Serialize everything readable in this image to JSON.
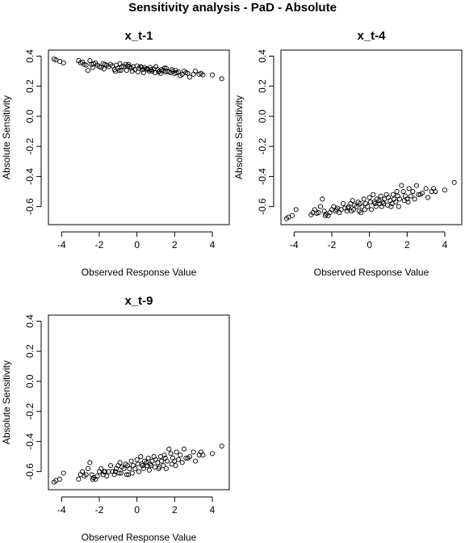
{
  "figure": {
    "title": "Sensitivity analysis - PaD - Absolute"
  },
  "chart_data": [
    {
      "type": "scatter",
      "title": "x_t-1",
      "xlabel": "Observed Response Value",
      "ylabel": "Absolute Sensitivity",
      "xlim": [
        -4.7,
        4.9
      ],
      "ylim": [
        -0.72,
        0.44
      ],
      "xticks": [
        -4,
        -2,
        0,
        2,
        4
      ],
      "yticks": [
        -0.6,
        -0.4,
        -0.2,
        0.0,
        0.2,
        0.4
      ],
      "xtick_labels": [
        "-4",
        "-2",
        "0",
        "2",
        "4"
      ],
      "ytick_labels": [
        "-0.6",
        "-0.4",
        "-0.2",
        "0.0",
        "0.2",
        "0.4"
      ],
      "marker": "open-circle",
      "trend": {
        "intercept": 0.315,
        "slope": -0.012,
        "spread": 0.045
      },
      "x": [
        -4.4,
        -4.3,
        -4.1,
        -3.9,
        -3.1,
        -3.0,
        -2.9,
        -2.8,
        -2.7,
        -2.6,
        -2.5,
        -2.4,
        -2.3,
        -2.2,
        -2.1,
        -2.0,
        -1.9,
        -1.8,
        -1.7,
        -1.6,
        -1.5,
        -1.4,
        -1.3,
        -1.2,
        -1.1,
        -1.0,
        -0.9,
        -0.85,
        -0.8,
        -0.7,
        -0.6,
        -0.55,
        -0.5,
        -0.4,
        -0.3,
        -0.25,
        -0.2,
        -0.1,
        0.0,
        0.05,
        0.1,
        0.2,
        0.3,
        0.35,
        0.4,
        0.5,
        0.6,
        0.65,
        0.7,
        0.8,
        0.9,
        0.95,
        1.0,
        1.1,
        1.2,
        1.25,
        1.3,
        1.4,
        1.5,
        1.55,
        1.6,
        1.7,
        1.8,
        1.85,
        1.9,
        2.0,
        2.1,
        2.2,
        2.3,
        2.4,
        2.5,
        2.6,
        2.8,
        3.0,
        3.1,
        3.3,
        3.5,
        4.0,
        4.5,
        -1.75,
        -1.15,
        -0.45,
        0.25,
        0.75,
        1.45,
        2.05,
        -0.95,
        0.55,
        1.15,
        -2.35,
        2.7,
        3.4
      ],
      "y": [
        0.38,
        0.375,
        0.365,
        0.355,
        0.37,
        0.355,
        0.36,
        0.345,
        0.34,
        0.305,
        0.37,
        0.345,
        0.35,
        0.355,
        0.34,
        0.33,
        0.325,
        0.35,
        0.345,
        0.34,
        0.33,
        0.345,
        0.335,
        0.31,
        0.34,
        0.32,
        0.35,
        0.305,
        0.33,
        0.33,
        0.345,
        0.305,
        0.335,
        0.33,
        0.32,
        0.3,
        0.33,
        0.31,
        0.335,
        0.295,
        0.32,
        0.33,
        0.31,
        0.29,
        0.325,
        0.315,
        0.31,
        0.3,
        0.325,
        0.3,
        0.315,
        0.29,
        0.33,
        0.31,
        0.3,
        0.285,
        0.31,
        0.305,
        0.295,
        0.32,
        0.3,
        0.295,
        0.29,
        0.31,
        0.3,
        0.285,
        0.29,
        0.295,
        0.27,
        0.28,
        0.3,
        0.29,
        0.26,
        0.28,
        0.3,
        0.28,
        0.275,
        0.275,
        0.25,
        0.315,
        0.3,
        0.345,
        0.325,
        0.31,
        0.32,
        0.305,
        0.305,
        0.315,
        0.295,
        0.325,
        0.285,
        0.285
      ]
    },
    {
      "type": "scatter",
      "title": "x_t-4",
      "xlabel": "Observed Response Value",
      "ylabel": "Absolute Sensitivity",
      "xlim": [
        -4.7,
        4.9
      ],
      "ylim": [
        -0.72,
        0.44
      ],
      "xticks": [
        -4,
        -2,
        0,
        2,
        4
      ],
      "yticks": [
        -0.6,
        -0.4,
        -0.2,
        0.0,
        0.2,
        0.4
      ],
      "xtick_labels": [
        "-4",
        "-2",
        "0",
        "2",
        "4"
      ],
      "ytick_labels": [
        "-0.6",
        "-0.4",
        "-0.2",
        "0.0",
        "0.2",
        "0.4"
      ],
      "marker": "open-circle",
      "x": [
        -4.4,
        -4.3,
        -4.1,
        -3.9,
        -3.1,
        -3.0,
        -2.9,
        -2.8,
        -2.7,
        -2.6,
        -2.5,
        -2.4,
        -2.3,
        -2.2,
        -2.1,
        -2.0,
        -1.9,
        -1.8,
        -1.7,
        -1.6,
        -1.5,
        -1.4,
        -1.3,
        -1.2,
        -1.1,
        -1.0,
        -0.9,
        -0.85,
        -0.8,
        -0.7,
        -0.6,
        -0.55,
        -0.5,
        -0.4,
        -0.3,
        -0.25,
        -0.2,
        -0.1,
        0.0,
        0.05,
        0.1,
        0.2,
        0.3,
        0.35,
        0.4,
        0.5,
        0.6,
        0.65,
        0.7,
        0.8,
        0.9,
        0.95,
        1.0,
        1.1,
        1.2,
        1.25,
        1.3,
        1.4,
        1.5,
        1.55,
        1.6,
        1.7,
        1.8,
        1.85,
        1.9,
        2.0,
        2.1,
        2.2,
        2.3,
        2.4,
        2.5,
        2.6,
        2.8,
        3.0,
        3.1,
        3.3,
        3.5,
        4.0,
        4.5,
        -1.75,
        -1.15,
        -0.45,
        0.25,
        0.75,
        1.45,
        2.05,
        -0.95,
        0.55,
        1.15,
        -2.35,
        2.7,
        3.4
      ],
      "y": [
        -0.68,
        -0.67,
        -0.66,
        -0.62,
        -0.655,
        -0.64,
        -0.62,
        -0.645,
        -0.64,
        -0.6,
        -0.55,
        -0.63,
        -0.65,
        -0.66,
        -0.64,
        -0.62,
        -0.6,
        -0.63,
        -0.61,
        -0.64,
        -0.62,
        -0.58,
        -0.61,
        -0.63,
        -0.6,
        -0.58,
        -0.56,
        -0.62,
        -0.59,
        -0.6,
        -0.57,
        -0.63,
        -0.58,
        -0.6,
        -0.55,
        -0.62,
        -0.58,
        -0.6,
        -0.54,
        -0.57,
        -0.62,
        -0.52,
        -0.58,
        -0.6,
        -0.55,
        -0.56,
        -0.53,
        -0.6,
        -0.57,
        -0.55,
        -0.52,
        -0.59,
        -0.54,
        -0.56,
        -0.58,
        -0.52,
        -0.55,
        -0.57,
        -0.53,
        -0.6,
        -0.55,
        -0.46,
        -0.5,
        -0.56,
        -0.53,
        -0.55,
        -0.48,
        -0.53,
        -0.5,
        -0.55,
        -0.46,
        -0.52,
        -0.51,
        -0.48,
        -0.54,
        -0.5,
        -0.5,
        -0.49,
        -0.44,
        -0.62,
        -0.61,
        -0.64,
        -0.57,
        -0.58,
        -0.5,
        -0.57,
        -0.63,
        -0.58,
        -0.6,
        -0.66,
        -0.52,
        -0.48
      ]
    },
    {
      "type": "scatter",
      "title": "x_t-9",
      "xlabel": "Observed Response Value",
      "ylabel": "Absolute Sensitivity",
      "xlim": [
        -4.7,
        4.9
      ],
      "ylim": [
        -0.72,
        0.44
      ],
      "xticks": [
        -4,
        -2,
        0,
        2,
        4
      ],
      "yticks": [
        -0.6,
        -0.4,
        -0.2,
        0.0,
        0.2,
        0.4
      ],
      "xtick_labels": [
        "-4",
        "-2",
        "0",
        "2",
        "4"
      ],
      "ytick_labels": [
        "-0.6",
        "-0.4",
        "-0.2",
        "0.0",
        "0.2",
        "0.4"
      ],
      "marker": "open-circle",
      "x": [
        -4.4,
        -4.3,
        -4.1,
        -3.9,
        -3.1,
        -3.0,
        -2.9,
        -2.8,
        -2.7,
        -2.6,
        -2.5,
        -2.4,
        -2.3,
        -2.2,
        -2.1,
        -2.0,
        -1.9,
        -1.8,
        -1.7,
        -1.6,
        -1.5,
        -1.4,
        -1.3,
        -1.2,
        -1.1,
        -1.0,
        -0.9,
        -0.85,
        -0.8,
        -0.7,
        -0.6,
        -0.55,
        -0.5,
        -0.4,
        -0.3,
        -0.25,
        -0.2,
        -0.1,
        0.0,
        0.05,
        0.1,
        0.2,
        0.3,
        0.35,
        0.4,
        0.5,
        0.6,
        0.65,
        0.7,
        0.8,
        0.9,
        0.95,
        1.0,
        1.1,
        1.2,
        1.25,
        1.3,
        1.4,
        1.5,
        1.55,
        1.6,
        1.7,
        1.8,
        1.85,
        1.9,
        2.0,
        2.1,
        2.2,
        2.3,
        2.4,
        2.5,
        2.6,
        2.8,
        3.0,
        3.1,
        3.3,
        3.5,
        4.0,
        4.5,
        -1.75,
        -1.15,
        -0.45,
        0.25,
        0.75,
        1.45,
        2.05,
        -0.95,
        0.55,
        1.15,
        -2.35,
        2.7,
        3.4
      ],
      "y": [
        -0.67,
        -0.66,
        -0.65,
        -0.61,
        -0.65,
        -0.62,
        -0.6,
        -0.63,
        -0.62,
        -0.58,
        -0.54,
        -0.62,
        -0.64,
        -0.65,
        -0.63,
        -0.6,
        -0.58,
        -0.62,
        -0.6,
        -0.63,
        -0.6,
        -0.56,
        -0.6,
        -0.62,
        -0.58,
        -0.56,
        -0.54,
        -0.61,
        -0.57,
        -0.58,
        -0.55,
        -0.62,
        -0.56,
        -0.58,
        -0.53,
        -0.61,
        -0.56,
        -0.58,
        -0.52,
        -0.55,
        -0.6,
        -0.5,
        -0.56,
        -0.58,
        -0.53,
        -0.54,
        -0.51,
        -0.59,
        -0.55,
        -0.53,
        -0.5,
        -0.57,
        -0.52,
        -0.54,
        -0.57,
        -0.5,
        -0.53,
        -0.56,
        -0.51,
        -0.58,
        -0.53,
        -0.45,
        -0.48,
        -0.55,
        -0.51,
        -0.53,
        -0.47,
        -0.52,
        -0.49,
        -0.54,
        -0.45,
        -0.51,
        -0.5,
        -0.47,
        -0.53,
        -0.49,
        -0.49,
        -0.48,
        -0.43,
        -0.6,
        -0.6,
        -0.62,
        -0.55,
        -0.56,
        -0.49,
        -0.56,
        -0.61,
        -0.56,
        -0.58,
        -0.65,
        -0.51,
        -0.47
      ]
    }
  ]
}
